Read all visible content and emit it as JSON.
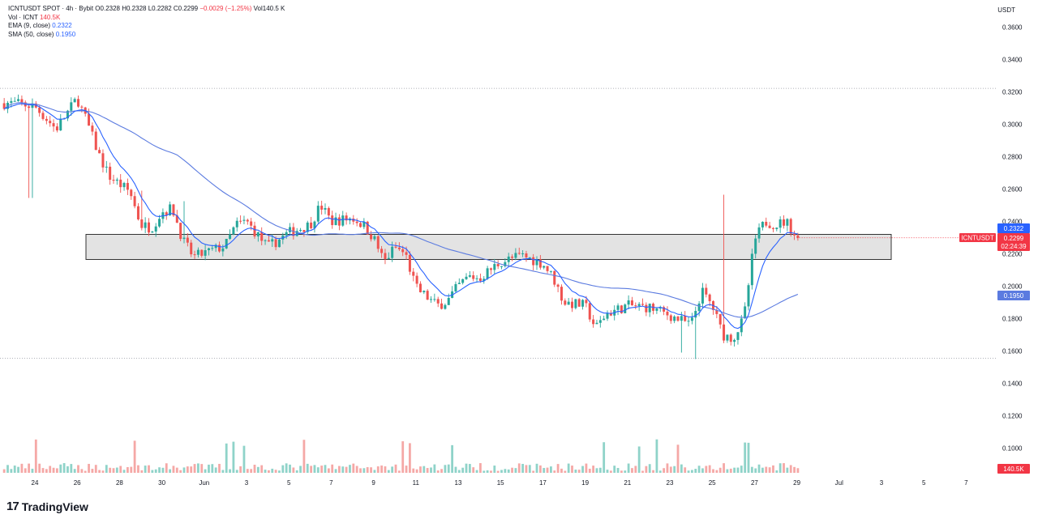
{
  "legend": {
    "symbol": "ICNTUSDT SPOT · 4h · Bybit",
    "ohlc": {
      "o": "O0.2328",
      "h": "H0.2328",
      "l": "L0.2282",
      "c": "C0.2299",
      "chg": "−0.0029 (−1.25%)",
      "vol": "Vol140.5 K"
    },
    "volume_label": "Vol · ICNT",
    "volume_value": "140.5K",
    "ema_label": "EMA (9, close)",
    "ema_value": "0.2322",
    "sma_label": "SMA (50, close)",
    "sma_value": "0.1950"
  },
  "currency": "USDT",
  "badges": {
    "ema": "0.2322",
    "symbol": "ICNTUSDT",
    "price": "0.2299",
    "countdown": "02:24:39",
    "sma": "0.1950",
    "volume": "140.5K"
  },
  "brand": "TradingView",
  "colors": {
    "up": "#26a69a",
    "down": "#ef5350",
    "ema": "#2962ff",
    "sma": "#5b7be0",
    "zone_fill": "#e3e3e3",
    "zone_stroke": "#333333"
  },
  "chart_data": {
    "type": "candlestick",
    "title": "ICNTUSDT SPOT · 4h · Bybit",
    "y_ticks": [
      "0.3600",
      "0.3400",
      "0.3200",
      "0.3000",
      "0.2800",
      "0.2600",
      "0.2400",
      "0.2200",
      "0.2000",
      "0.1800",
      "0.1600"
    ],
    "volume_ticks": [
      "0.1400",
      "0.1200",
      "0.1000"
    ],
    "x_ticks": [
      "24",
      "26",
      "28",
      "30",
      "Jun",
      "3",
      "5",
      "7",
      "9",
      "11",
      "13",
      "15",
      "17",
      "19",
      "21",
      "23",
      "25",
      "27",
      "29",
      "Jul",
      "3",
      "5",
      "7"
    ],
    "ylim": [
      0.15,
      0.365
    ],
    "grid": false,
    "support_zone": [
      0.2165,
      0.232
    ],
    "dotted_levels": [
      0.3222,
      0.1555
    ],
    "anchors": [
      [
        "May 23",
        0.313
      ],
      [
        "May 24",
        0.311
      ],
      [
        "May 25",
        0.297
      ],
      [
        "May 26",
        0.316
      ],
      [
        "May 26 12h",
        0.3
      ],
      [
        "May 27",
        0.282
      ],
      [
        "May 27 12h",
        0.268
      ],
      [
        "May 28",
        0.263
      ],
      [
        "May 28 12h",
        0.258
      ],
      [
        "May 29",
        0.238
      ],
      [
        "May 29 12h",
        0.236
      ],
      [
        "May 30",
        0.246
      ],
      [
        "May 30 12h",
        0.248
      ],
      [
        "May 31",
        0.228
      ],
      [
        "May 31 12h",
        0.218
      ],
      [
        "Jun 1",
        0.225
      ],
      [
        "Jun 1 12h",
        0.238
      ],
      [
        "Jun 2",
        0.24
      ],
      [
        "Jun 3",
        0.224
      ],
      [
        "Jun 4",
        0.233
      ],
      [
        "Jun 5",
        0.238
      ],
      [
        "Jun 5 12h",
        0.25
      ],
      [
        "Jun 6",
        0.24
      ],
      [
        "Jun 7",
        0.242
      ],
      [
        "Jun 7 12h",
        0.238
      ],
      [
        "Jun 8",
        0.23
      ],
      [
        "Jun 8 12h",
        0.215
      ],
      [
        "Jun 9",
        0.224
      ],
      [
        "Jun 9 12h",
        0.22
      ],
      [
        "Jun 10",
        0.199
      ],
      [
        "Jun 11",
        0.188
      ],
      [
        "Jun 11 12h",
        0.191
      ],
      [
        "Jun 12",
        0.2
      ],
      [
        "Jun 12 12h",
        0.206
      ],
      [
        "Jun 13",
        0.205
      ],
      [
        "Jun 14",
        0.215
      ],
      [
        "Jun 15",
        0.219
      ],
      [
        "Jun 16",
        0.214
      ],
      [
        "Jun 16 12h",
        0.205
      ],
      [
        "Jun 17",
        0.19
      ],
      [
        "Jun 18",
        0.188
      ],
      [
        "Jun 18 12h",
        0.174
      ],
      [
        "Jun 19",
        0.183
      ],
      [
        "Jun 20",
        0.188
      ],
      [
        "Jun 21",
        0.187
      ],
      [
        "Jun 22",
        0.182
      ],
      [
        "Jun 22 12h",
        0.179
      ],
      [
        "Jun 23",
        0.176
      ],
      [
        "Jun 23 12h",
        0.197
      ],
      [
        "Jun 24",
        0.188
      ],
      [
        "Jun 24 12h",
        0.17
      ],
      [
        "Jun 25",
        0.168
      ],
      [
        "Jun 25 12h",
        0.18
      ],
      [
        "Jun 26",
        0.228
      ],
      [
        "Jun 26 12h",
        0.24
      ],
      [
        "Jun 27",
        0.238
      ],
      [
        "Jun 27 12h",
        0.24
      ],
      [
        "Jun 28",
        0.2299
      ]
    ],
    "ema_last": 0.2322,
    "sma_last": 0.195,
    "volume_last": "140.5K"
  }
}
